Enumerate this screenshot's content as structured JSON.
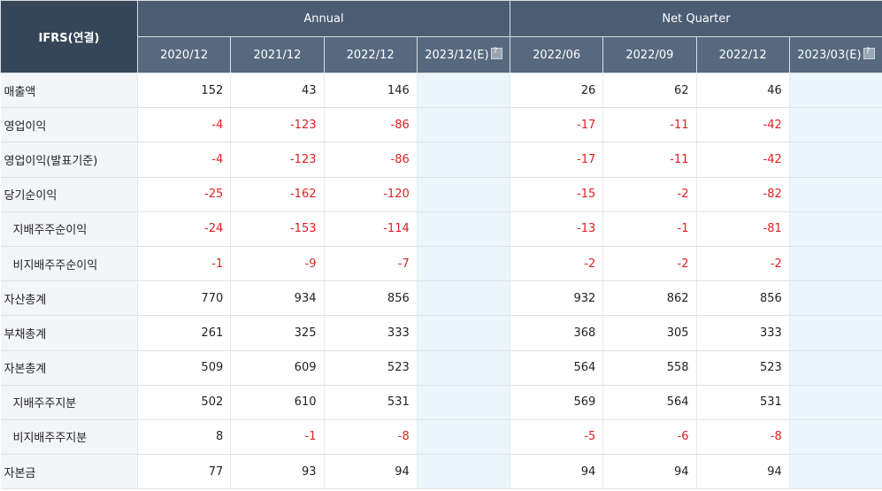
{
  "header": {
    "ifrs": "IFRS(연결)",
    "annual": "Annual",
    "quarter": "Net Quarter",
    "periods": [
      "2020/12",
      "2021/12",
      "2022/12",
      "2023/12(E)",
      "2022/06",
      "2022/09",
      "2022/12",
      "2023/03(E)"
    ]
  },
  "rows": [
    {
      "label": "매출액",
      "indent": false,
      "values": [
        "152",
        "43",
        "146",
        "",
        "26",
        "62",
        "46",
        ""
      ]
    },
    {
      "label": "영업이익",
      "indent": false,
      "values": [
        "-4",
        "-123",
        "-86",
        "",
        "-17",
        "-11",
        "-42",
        ""
      ]
    },
    {
      "label": "영업이익(발표기준)",
      "indent": false,
      "values": [
        "-4",
        "-123",
        "-86",
        "",
        "-17",
        "-11",
        "-42",
        ""
      ]
    },
    {
      "label": "당기순이익",
      "indent": false,
      "values": [
        "-25",
        "-162",
        "-120",
        "",
        "-15",
        "-2",
        "-82",
        ""
      ]
    },
    {
      "label": "지배주주순이익",
      "indent": true,
      "values": [
        "-24",
        "-153",
        "-114",
        "",
        "-13",
        "-1",
        "-81",
        ""
      ]
    },
    {
      "label": "비지배주주순이익",
      "indent": true,
      "values": [
        "-1",
        "-9",
        "-7",
        "",
        "-2",
        "-2",
        "-2",
        ""
      ]
    },
    {
      "label": "자산총계",
      "indent": false,
      "values": [
        "770",
        "934",
        "856",
        "",
        "932",
        "862",
        "856",
        ""
      ]
    },
    {
      "label": "부채총계",
      "indent": false,
      "values": [
        "261",
        "325",
        "333",
        "",
        "368",
        "305",
        "333",
        ""
      ]
    },
    {
      "label": "자본총계",
      "indent": false,
      "values": [
        "509",
        "609",
        "523",
        "",
        "564",
        "558",
        "523",
        ""
      ]
    },
    {
      "label": "지배주주지분",
      "indent": true,
      "values": [
        "502",
        "610",
        "531",
        "",
        "569",
        "564",
        "531",
        ""
      ]
    },
    {
      "label": "비지배주주지분",
      "indent": true,
      "values": [
        "8",
        "-1",
        "-8",
        "",
        "-5",
        "-6",
        "-8",
        ""
      ]
    },
    {
      "label": "자본금",
      "indent": false,
      "values": [
        "77",
        "93",
        "94",
        "",
        "94",
        "94",
        "94",
        ""
      ]
    }
  ],
  "colors": {
    "header": "#4a5d73",
    "label_bg": "#f3f5f8",
    "estimate_bg": "#eaf6fb",
    "negative": "#e02020"
  }
}
